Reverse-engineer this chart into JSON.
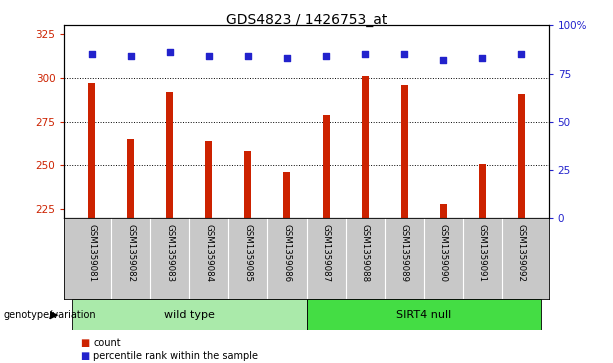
{
  "title": "GDS4823 / 1426753_at",
  "samples": [
    "GSM1359081",
    "GSM1359082",
    "GSM1359083",
    "GSM1359084",
    "GSM1359085",
    "GSM1359086",
    "GSM1359087",
    "GSM1359088",
    "GSM1359089",
    "GSM1359090",
    "GSM1359091",
    "GSM1359092"
  ],
  "counts": [
    297,
    265,
    292,
    264,
    258,
    246,
    279,
    301,
    296,
    228,
    251,
    291
  ],
  "percentile_ranks": [
    85,
    84,
    86,
    84,
    84,
    83,
    84,
    85,
    85,
    82,
    83,
    85
  ],
  "bar_color": "#cc2200",
  "dot_color": "#2222cc",
  "ylim_left": [
    220,
    330
  ],
  "ylim_right": [
    0,
    100
  ],
  "yticks_left": [
    225,
    250,
    275,
    300,
    325
  ],
  "yticks_right": [
    0,
    25,
    50,
    75,
    100
  ],
  "grid_values": [
    250,
    275,
    300
  ],
  "groups": [
    {
      "label": "wild type",
      "start": 0,
      "end": 6,
      "color": "#aaeaaa"
    },
    {
      "label": "SIRT4 null",
      "start": 6,
      "end": 12,
      "color": "#44dd44"
    }
  ],
  "group_label": "genotype/variation",
  "legend_bar_label": "count",
  "legend_dot_label": "percentile rank within the sample",
  "bar_width": 0.18,
  "xlabel_area_color": "#c8c8c8"
}
